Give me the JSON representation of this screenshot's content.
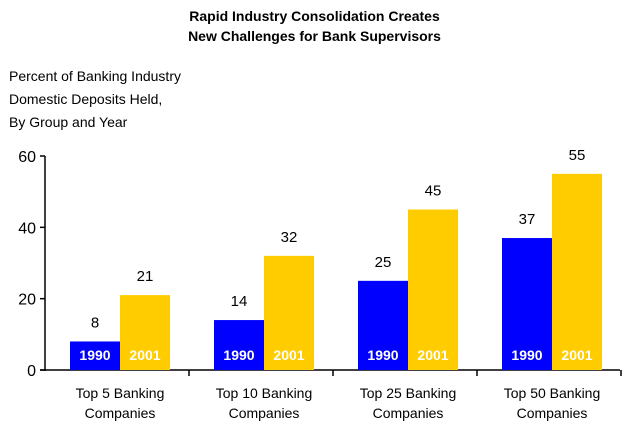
{
  "chart_data": {
    "type": "bar",
    "title_lines": [
      "Rapid Industry Consolidation Creates",
      "New Challenges for Bank Supervisors"
    ],
    "ylabel_lines": [
      "Percent of Banking Industry",
      "Domestic Deposits Held,",
      "By Group and Year"
    ],
    "categories": [
      [
        "Top 5 Banking",
        "Companies"
      ],
      [
        "Top 10 Banking",
        "Companies"
      ],
      [
        "Top 25 Banking",
        "Companies"
      ],
      [
        "Top 50 Banking",
        "Companies"
      ]
    ],
    "series": [
      {
        "label": "1990",
        "color": "#0000ff",
        "values": [
          8,
          14,
          25,
          37
        ]
      },
      {
        "label": "2001",
        "color": "#ffcc00",
        "values": [
          21,
          32,
          45,
          55
        ]
      }
    ],
    "ylim": [
      0,
      60
    ],
    "yticks": [
      0,
      20,
      40,
      60
    ],
    "grid": false,
    "legend": "none"
  }
}
